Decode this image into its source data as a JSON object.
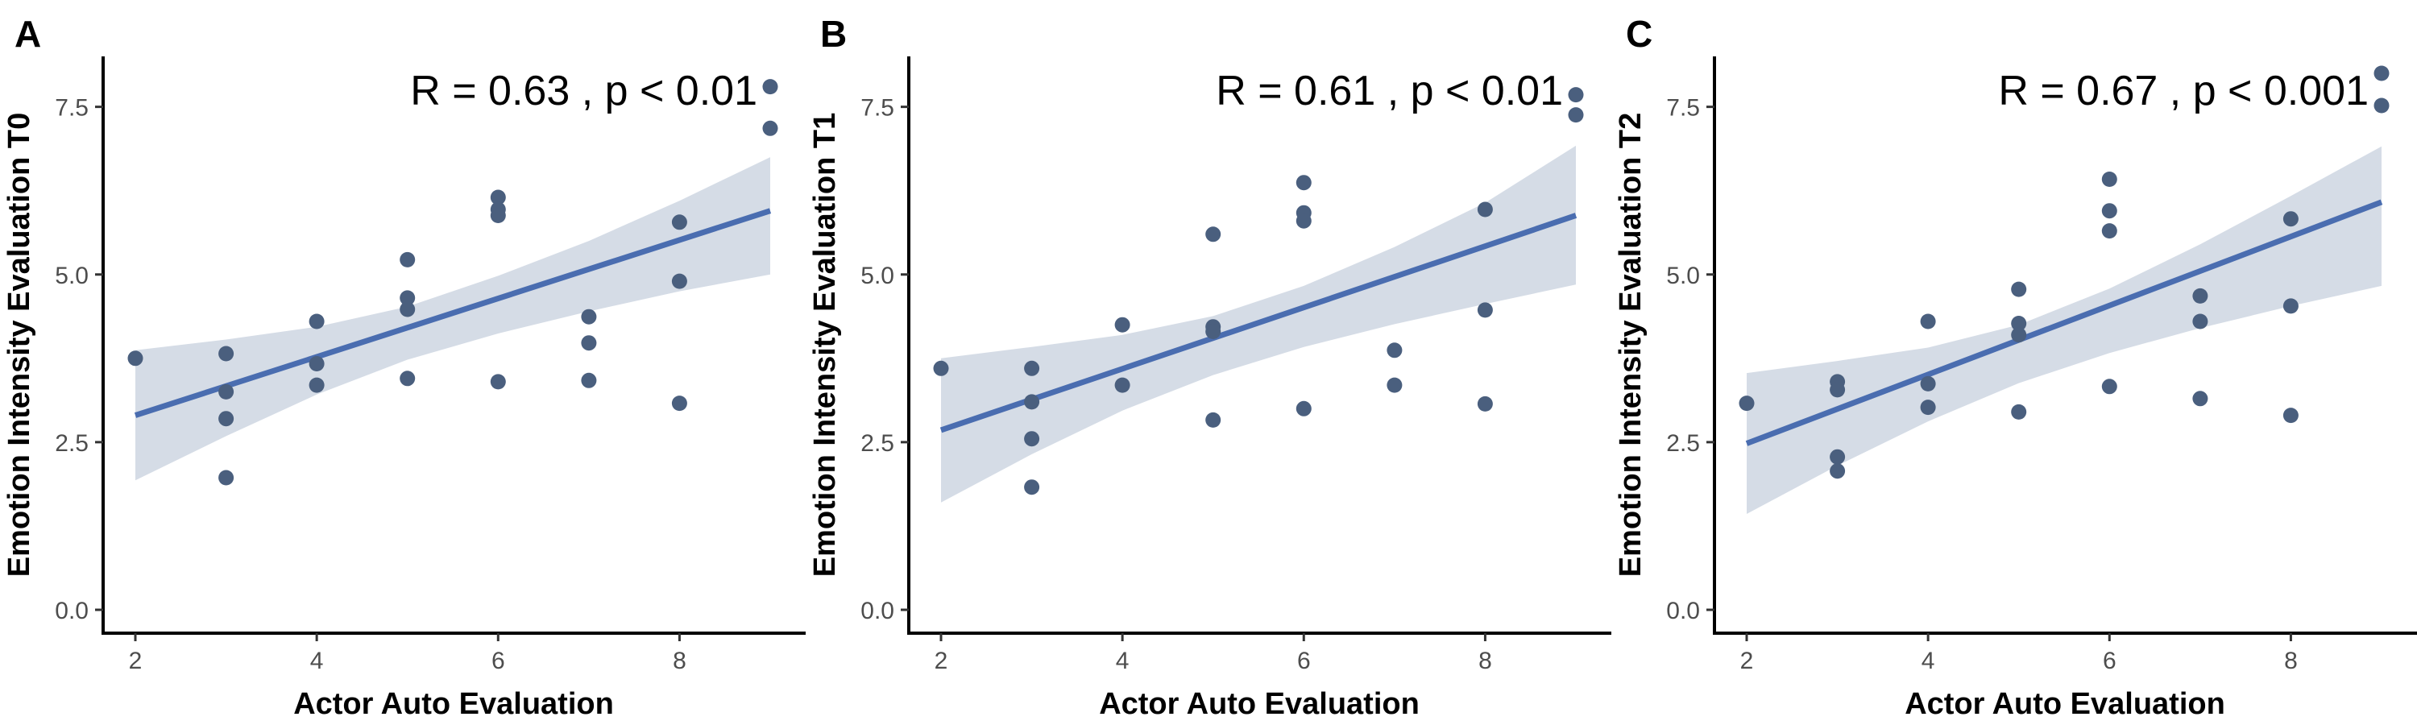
{
  "chart_data": [
    {
      "type": "scatter",
      "panel_label": "A",
      "annotation": "R = 0.63 , p < 0.01",
      "xlabel": "Actor Auto Evaluation",
      "ylabel": "Emotion Intensity Evaluation T0",
      "xlim": [
        2,
        9
      ],
      "ylim": [
        0,
        8
      ],
      "xticks": [
        2,
        4,
        6,
        8
      ],
      "xtick_labels": [
        "2",
        "4",
        "6",
        "8"
      ],
      "yticks": [
        0,
        2.5,
        5,
        7.5
      ],
      "ytick_labels": [
        "0.0",
        "2.5",
        "5.0",
        "7.5"
      ],
      "points": [
        [
          2,
          3.75
        ],
        [
          3,
          3.82
        ],
        [
          3,
          3.25
        ],
        [
          3,
          2.85
        ],
        [
          3,
          1.97
        ],
        [
          4,
          4.3
        ],
        [
          4,
          3.67
        ],
        [
          4,
          3.35
        ],
        [
          5,
          5.22
        ],
        [
          5,
          4.65
        ],
        [
          5,
          4.48
        ],
        [
          5,
          3.45
        ],
        [
          6,
          6.15
        ],
        [
          6,
          5.97
        ],
        [
          6,
          5.88
        ],
        [
          6,
          3.4
        ],
        [
          7,
          4.37
        ],
        [
          7,
          3.98
        ],
        [
          7,
          3.42
        ],
        [
          8,
          5.78
        ],
        [
          8,
          4.9
        ],
        [
          8,
          3.08
        ],
        [
          9,
          7.8
        ],
        [
          9,
          7.18
        ]
      ],
      "fit": {
        "x": [
          2,
          9
        ],
        "y": [
          2.9,
          5.95
        ]
      },
      "ci_band": [
        [
          2,
          1.93,
          3.87
        ],
        [
          3,
          2.59,
          4.03
        ],
        [
          4,
          3.21,
          4.22
        ],
        [
          5,
          3.73,
          4.52
        ],
        [
          6,
          4.12,
          4.98
        ],
        [
          7,
          4.45,
          5.5
        ],
        [
          8,
          4.75,
          6.1
        ],
        [
          9,
          5.0,
          6.75
        ]
      ],
      "grid": false,
      "colors": {
        "points": "#4a5f7e",
        "fit_line": "#4a6db0",
        "ci_band": "#d5dce6"
      }
    },
    {
      "type": "scatter",
      "panel_label": "B",
      "annotation": "R = 0.61 , p < 0.01",
      "xlabel": "Actor Auto Evaluation",
      "ylabel": "Emotion Intensity Evaluation T1",
      "xlim": [
        2,
        9
      ],
      "ylim": [
        0,
        8
      ],
      "xticks": [
        2,
        4,
        6,
        8
      ],
      "xtick_labels": [
        "2",
        "4",
        "6",
        "8"
      ],
      "yticks": [
        0,
        2.5,
        5,
        7.5
      ],
      "ytick_labels": [
        "0.0",
        "2.5",
        "5.0",
        "7.5"
      ],
      "points": [
        [
          2,
          3.6
        ],
        [
          3,
          3.6
        ],
        [
          3,
          3.1
        ],
        [
          3,
          2.55
        ],
        [
          3,
          1.83
        ],
        [
          4,
          4.25
        ],
        [
          4,
          3.35
        ],
        [
          5,
          5.6
        ],
        [
          5,
          4.22
        ],
        [
          5,
          4.15
        ],
        [
          5,
          2.83
        ],
        [
          6,
          6.37
        ],
        [
          6,
          5.92
        ],
        [
          6,
          5.8
        ],
        [
          6,
          3.0
        ],
        [
          7,
          3.87
        ],
        [
          7,
          3.35
        ],
        [
          8,
          5.97
        ],
        [
          8,
          4.47
        ],
        [
          8,
          3.07
        ],
        [
          9,
          7.68
        ],
        [
          9,
          7.38
        ]
      ],
      "fit": {
        "x": [
          2,
          9
        ],
        "y": [
          2.68,
          5.88
        ]
      },
      "ci_band": [
        [
          2,
          1.6,
          3.75
        ],
        [
          3,
          2.32,
          3.92
        ],
        [
          4,
          2.97,
          4.1
        ],
        [
          5,
          3.5,
          4.38
        ],
        [
          6,
          3.92,
          4.83
        ],
        [
          7,
          4.26,
          5.41
        ],
        [
          8,
          4.56,
          6.07
        ],
        [
          9,
          4.85,
          6.92
        ]
      ],
      "grid": false,
      "colors": {
        "points": "#4a5f7e",
        "fit_line": "#4a6db0",
        "ci_band": "#d5dce6"
      }
    },
    {
      "type": "scatter",
      "panel_label": "C",
      "annotation": "R = 0.67 , p < 0.001",
      "xlabel": "Actor Auto Evaluation",
      "ylabel": "Emotion Intensity Evaluation T2",
      "xlim": [
        2,
        9
      ],
      "ylim": [
        0,
        8
      ],
      "xticks": [
        2,
        4,
        6,
        8
      ],
      "xtick_labels": [
        "2",
        "4",
        "6",
        "8"
      ],
      "yticks": [
        0,
        2.5,
        5,
        7.5
      ],
      "ytick_labels": [
        "0.0",
        "2.5",
        "5.0",
        "7.5"
      ],
      "points": [
        [
          2,
          3.08
        ],
        [
          3,
          3.4
        ],
        [
          3,
          3.28
        ],
        [
          3,
          2.28
        ],
        [
          3,
          2.07
        ],
        [
          4,
          4.3
        ],
        [
          4,
          3.37
        ],
        [
          4,
          3.02
        ],
        [
          5,
          4.78
        ],
        [
          5,
          4.27
        ],
        [
          5,
          4.1
        ],
        [
          5,
          2.95
        ],
        [
          6,
          6.42
        ],
        [
          6,
          5.95
        ],
        [
          6,
          5.65
        ],
        [
          6,
          3.33
        ],
        [
          7,
          4.68
        ],
        [
          7,
          4.3
        ],
        [
          7,
          3.15
        ],
        [
          8,
          5.83
        ],
        [
          8,
          4.53
        ],
        [
          8,
          2.9
        ],
        [
          9,
          8.0
        ],
        [
          9,
          7.52
        ]
      ],
      "fit": {
        "x": [
          2,
          9
        ],
        "y": [
          2.48,
          6.08
        ]
      },
      "ci_band": [
        [
          2,
          1.43,
          3.53
        ],
        [
          3,
          2.15,
          3.71
        ],
        [
          4,
          2.81,
          3.91
        ],
        [
          5,
          3.38,
          4.25
        ],
        [
          6,
          3.83,
          4.79
        ],
        [
          7,
          4.2,
          5.45
        ],
        [
          8,
          4.53,
          6.17
        ],
        [
          9,
          4.83,
          6.91
        ]
      ],
      "grid": false,
      "colors": {
        "points": "#4a5f7e",
        "fit_line": "#4a6db0",
        "ci_band": "#d5dce6"
      }
    }
  ]
}
